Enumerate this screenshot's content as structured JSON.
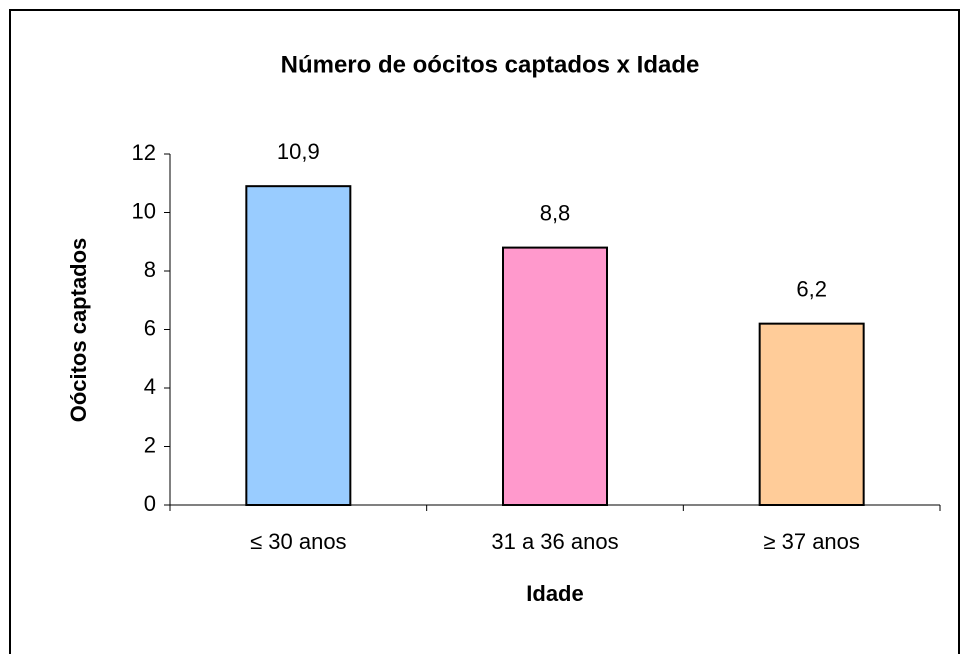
{
  "chart_data": {
    "type": "bar",
    "title": "Número de oócitos captados x Idade",
    "x_label": "Idade",
    "y_label": "Oócitos captados",
    "categories": [
      "≤ 30 anos",
      "31 a 36 anos",
      "≥ 37 anos"
    ],
    "values": [
      10.9,
      8.8,
      6.2
    ],
    "value_labels": [
      "10,9",
      "8,8",
      "6,2"
    ],
    "colors": [
      "#99ccff",
      "#ff99cc",
      "#ffcc99"
    ],
    "ylim": [
      0,
      12
    ],
    "yticks": [
      0,
      2,
      4,
      6,
      8,
      10,
      12
    ],
    "grid": false
  }
}
